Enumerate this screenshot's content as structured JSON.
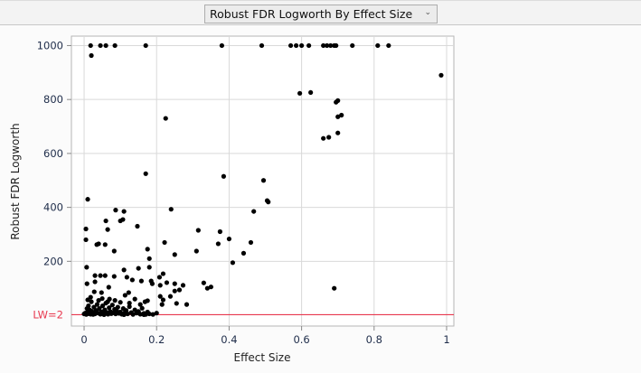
{
  "toolbar": {
    "dropdown_value": "Robust FDR Logworth By Effect Size",
    "dropdown_icon": "chevron-down-icon"
  },
  "chart_data": {
    "type": "scatter",
    "title": "",
    "xlabel": "Effect Size",
    "ylabel": "Robust FDR Logworth",
    "xlim": [
      -0.035,
      1.02
    ],
    "ylim": [
      -40,
      1035
    ],
    "xticks": [
      0,
      0.2,
      0.4,
      0.6,
      0.8,
      1
    ],
    "xtick_labels": [
      "0",
      "0.2",
      "0.4",
      "0.6",
      "0.8",
      "1"
    ],
    "yticks": [
      1000,
      800,
      600,
      400,
      200
    ],
    "ytick_labels": [
      "1000",
      "800",
      "600",
      "400",
      "200"
    ],
    "grid": true,
    "reference_line": {
      "y": 2,
      "label": "LW=2",
      "color": "#e8384f"
    },
    "point_color": "#000000",
    "points": [
      [
        0.018,
        1000
      ],
      [
        0.045,
        1000
      ],
      [
        0.06,
        1000
      ],
      [
        0.085,
        1000
      ],
      [
        0.17,
        1000
      ],
      [
        0.38,
        1000
      ],
      [
        0.49,
        1000
      ],
      [
        0.57,
        1000
      ],
      [
        0.585,
        1000
      ],
      [
        0.6,
        1000
      ],
      [
        0.62,
        1000
      ],
      [
        0.66,
        1000
      ],
      [
        0.67,
        1000
      ],
      [
        0.68,
        1000
      ],
      [
        0.69,
        1000
      ],
      [
        0.695,
        1000
      ],
      [
        0.74,
        1000
      ],
      [
        0.81,
        1000
      ],
      [
        0.84,
        1000
      ],
      [
        0.02,
        963
      ],
      [
        0.985,
        890
      ],
      [
        0.595,
        823
      ],
      [
        0.625,
        826
      ],
      [
        0.7,
        796
      ],
      [
        0.695,
        790
      ],
      [
        0.7,
        736
      ],
      [
        0.71,
        742
      ],
      [
        0.66,
        656
      ],
      [
        0.675,
        660
      ],
      [
        0.7,
        676
      ],
      [
        0.225,
        730
      ],
      [
        0.17,
        525
      ],
      [
        0.385,
        515
      ],
      [
        0.495,
        500
      ],
      [
        0.505,
        425
      ],
      [
        0.508,
        420
      ],
      [
        0.24,
        393
      ],
      [
        0.01,
        430
      ],
      [
        0.468,
        385
      ],
      [
        0.375,
        310
      ],
      [
        0.4,
        283
      ],
      [
        0.37,
        265
      ],
      [
        0.46,
        270
      ],
      [
        0.44,
        230
      ],
      [
        0.41,
        195
      ],
      [
        0.315,
        315
      ],
      [
        0.31,
        238
      ],
      [
        0.087,
        390
      ],
      [
        0.11,
        385
      ],
      [
        0.107,
        355
      ],
      [
        0.1,
        350
      ],
      [
        0.06,
        350
      ],
      [
        0.065,
        318
      ],
      [
        0.058,
        262
      ],
      [
        0.083,
        238
      ],
      [
        0.005,
        280
      ],
      [
        0.005,
        320
      ],
      [
        0.147,
        330
      ],
      [
        0.175,
        245
      ],
      [
        0.18,
        210
      ],
      [
        0.222,
        270
      ],
      [
        0.25,
        225
      ],
      [
        0.04,
        265
      ],
      [
        0.035,
        262
      ],
      [
        0.33,
        120
      ],
      [
        0.34,
        100
      ],
      [
        0.35,
        105
      ],
      [
        0.69,
        100
      ],
      [
        0.007,
        178
      ],
      [
        0.11,
        168
      ],
      [
        0.15,
        174
      ],
      [
        0.18,
        178
      ],
      [
        0.03,
        147
      ],
      [
        0.045,
        147
      ],
      [
        0.058,
        147
      ],
      [
        0.083,
        144
      ],
      [
        0.118,
        141
      ],
      [
        0.133,
        131
      ],
      [
        0.158,
        127
      ],
      [
        0.185,
        127
      ],
      [
        0.188,
        117
      ],
      [
        0.218,
        154
      ],
      [
        0.208,
        141
      ],
      [
        0.008,
        117
      ],
      [
        0.03,
        124
      ],
      [
        0.228,
        121
      ],
      [
        0.25,
        117
      ],
      [
        0.273,
        111
      ],
      [
        0.21,
        111
      ],
      [
        0.028,
        87
      ],
      [
        0.048,
        84
      ],
      [
        0.068,
        104
      ],
      [
        0.123,
        84
      ],
      [
        0.113,
        74
      ],
      [
        0.14,
        60
      ],
      [
        0.168,
        50
      ],
      [
        0.175,
        54
      ],
      [
        0.21,
        70
      ],
      [
        0.238,
        70
      ],
      [
        0.218,
        57
      ],
      [
        0.25,
        90
      ],
      [
        0.263,
        94
      ],
      [
        0.255,
        44
      ],
      [
        0.283,
        40
      ],
      [
        0.215,
        40
      ],
      [
        0.018,
        67
      ],
      [
        0.01,
        57
      ],
      [
        0.0,
        5
      ],
      [
        0.003,
        8
      ],
      [
        0.006,
        3
      ],
      [
        0.009,
        12
      ],
      [
        0.012,
        6
      ],
      [
        0.015,
        20
      ],
      [
        0.018,
        4
      ],
      [
        0.021,
        15
      ],
      [
        0.024,
        9
      ],
      [
        0.027,
        30
      ],
      [
        0.03,
        5
      ],
      [
        0.033,
        18
      ],
      [
        0.036,
        40
      ],
      [
        0.039,
        8
      ],
      [
        0.042,
        25
      ],
      [
        0.045,
        4
      ],
      [
        0.048,
        12
      ],
      [
        0.051,
        35
      ],
      [
        0.054,
        6
      ],
      [
        0.057,
        20
      ],
      [
        0.06,
        45
      ],
      [
        0.063,
        10
      ],
      [
        0.066,
        4
      ],
      [
        0.069,
        28
      ],
      [
        0.072,
        14
      ],
      [
        0.075,
        6
      ],
      [
        0.078,
        38
      ],
      [
        0.081,
        9
      ],
      [
        0.084,
        22
      ],
      [
        0.087,
        5
      ],
      [
        0.09,
        16
      ],
      [
        0.093,
        30
      ],
      [
        0.096,
        7
      ],
      [
        0.1,
        12
      ],
      [
        0.104,
        4
      ],
      [
        0.108,
        25
      ],
      [
        0.112,
        9
      ],
      [
        0.116,
        18
      ],
      [
        0.12,
        5
      ],
      [
        0.125,
        32
      ],
      [
        0.13,
        10
      ],
      [
        0.135,
        3
      ],
      [
        0.14,
        20
      ],
      [
        0.145,
        8
      ],
      [
        0.15,
        14
      ],
      [
        0.155,
        4
      ],
      [
        0.16,
        26
      ],
      [
        0.165,
        7
      ],
      [
        0.17,
        3
      ],
      [
        0.175,
        12
      ],
      [
        0.18,
        5
      ],
      [
        0.19,
        3
      ],
      [
        0.2,
        8
      ],
      [
        0.02,
        50
      ],
      [
        0.04,
        55
      ],
      [
        0.07,
        60
      ],
      [
        0.1,
        48
      ],
      [
        0.012,
        35
      ],
      [
        0.05,
        62
      ],
      [
        0.085,
        55
      ],
      [
        0.125,
        45
      ],
      [
        0.155,
        40
      ],
      [
        0.025,
        3
      ],
      [
        0.055,
        2
      ],
      [
        0.11,
        2
      ],
      [
        0.165,
        2
      ],
      [
        0.008,
        25
      ],
      [
        0.065,
        50
      ]
    ]
  }
}
